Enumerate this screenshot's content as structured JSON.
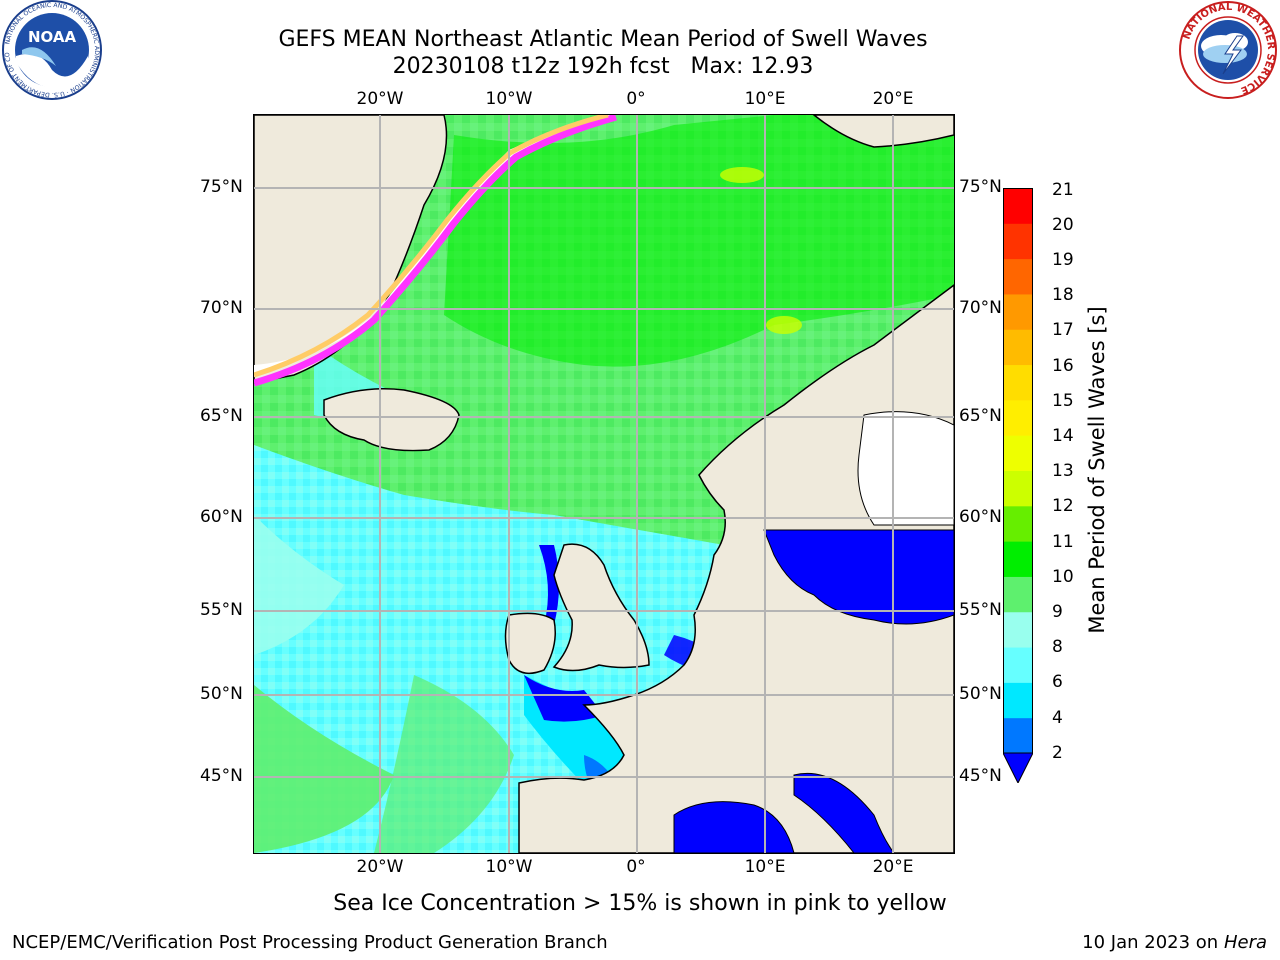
{
  "header": {
    "title_line1": "GEFS MEAN Northeast Atlantic Mean Period of Swell Waves",
    "title_line2": "20230108 t12z 192h fcst   Max: 12.93"
  },
  "logos": {
    "left": "NOAA",
    "left_ring": "NATIONAL OCEANIC AND ATMOSPHERIC ADMINISTRATION · U.S. DEPARTMENT OF COMMERCE",
    "right_ring": "NATIONAL WEATHER SERVICE"
  },
  "map": {
    "projection": "polar stereographic",
    "lon_ticks_top": [
      "20°W",
      "10°W",
      "0°",
      "10°E",
      "20°E"
    ],
    "lon_ticks_bottom": [
      "20°W",
      "10°W",
      "0°",
      "10°E",
      "20°E"
    ],
    "lat_ticks_left": [
      "75°N",
      "70°N",
      "65°N",
      "60°N",
      "55°N",
      "50°N",
      "45°N"
    ],
    "lat_ticks_right": [
      "75°N",
      "70°N",
      "65°N",
      "60°N",
      "55°N",
      "50°N",
      "45°N"
    ],
    "land_color": "#efeadc",
    "ice_colors": [
      "#ff33ff",
      "#ffcc66"
    ]
  },
  "colorbar": {
    "label": "Mean Period of Swell Waves [s]",
    "ticks": [
      "21",
      "20",
      "19",
      "18",
      "17",
      "16",
      "15",
      "14",
      "13",
      "12",
      "11",
      "10",
      "9",
      "8",
      "6",
      "4",
      "2"
    ],
    "colors_low_to_high": [
      "#0000ff",
      "#0078ff",
      "#00e8ff",
      "#66ffff",
      "#99ffee",
      "#5ef06e",
      "#00ee00",
      "#66ee00",
      "#ccff00",
      "#eeff00",
      "#ffee00",
      "#ffdd00",
      "#ffbb00",
      "#ff9900",
      "#ff6600",
      "#ff3300",
      "#ff0000"
    ],
    "extend": "min"
  },
  "notes": {
    "ice": "Sea Ice Concentration > 15% is shown in pink to yellow"
  },
  "footer": {
    "left": "NCEP/EMC/Verification Post Processing Product Generation Branch",
    "date": "10 Jan 2023 on",
    "machine": "Hera"
  }
}
